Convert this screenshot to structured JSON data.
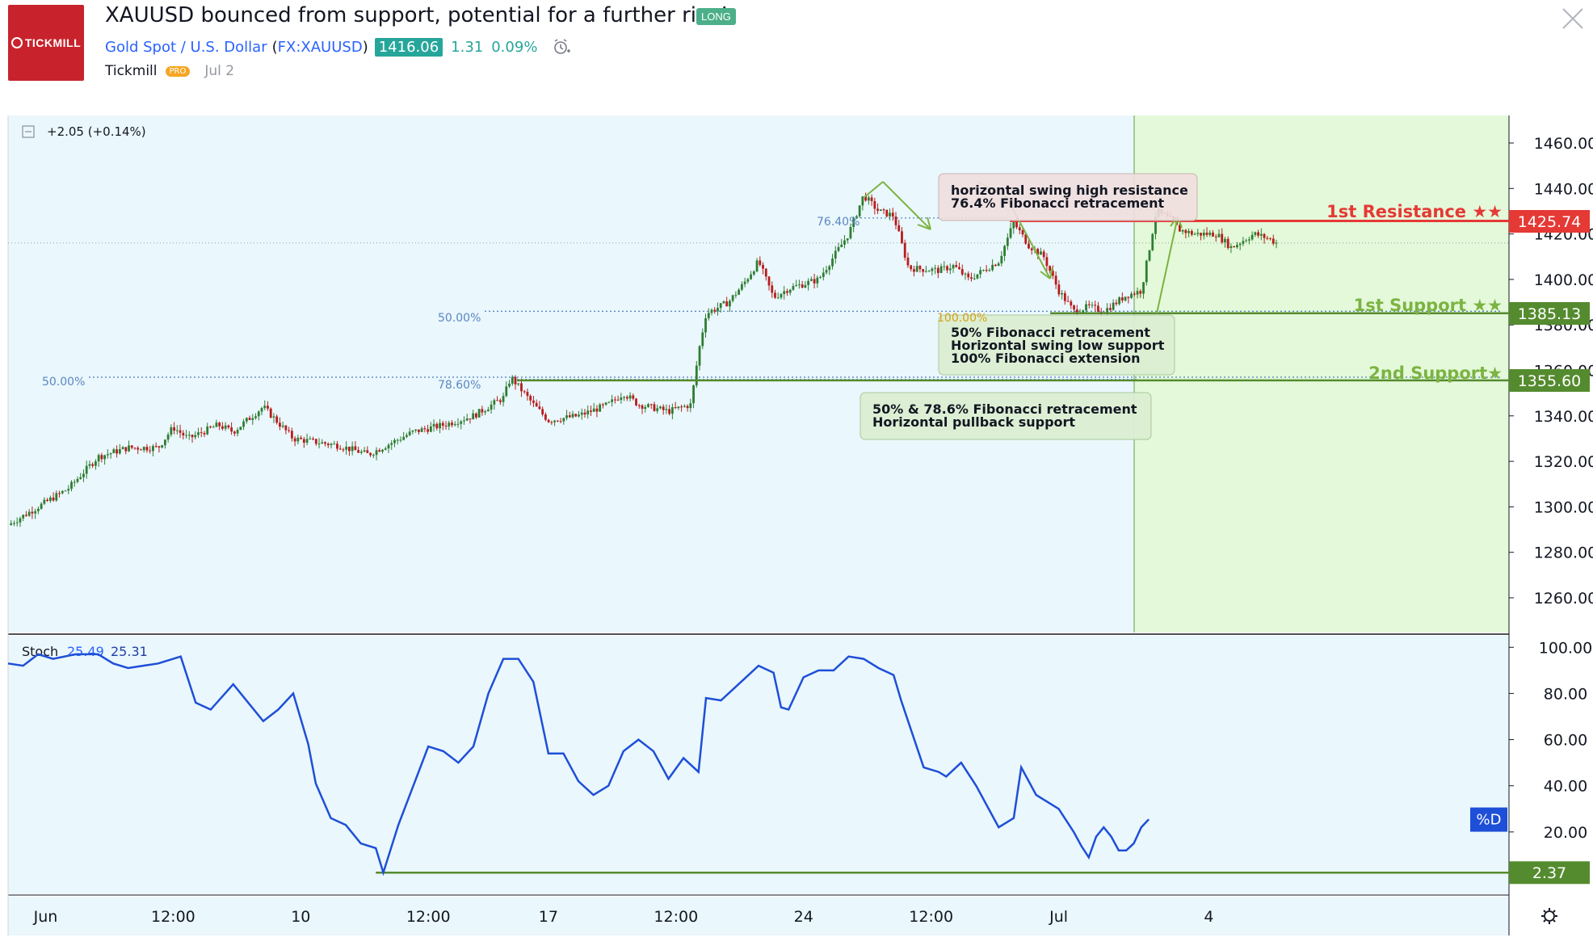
{
  "header": {
    "logo_text": "TICKMILL",
    "title": "XAUUSD bounced from support, potential for a further rise!",
    "badge": "LONG",
    "symbol_name": "Gold Spot / U.S. Dollar",
    "symbol_code": "FX:XAUUSD",
    "price": "1416.06",
    "change": "1.31",
    "change_pct": "0.09%",
    "author": "Tickmill",
    "author_badge": "PRO",
    "date": "Jul 2",
    "icons": [
      "alarm-clock-icon",
      "close-icon"
    ]
  },
  "colors": {
    "chart_bg": "#eaf7fc",
    "highlight_bg": "#e3f9d9",
    "resistance": "#e53935",
    "support": "#558b2f",
    "stoch_line": "#1e4fd8",
    "candle_up": "#2e7d32",
    "candle_down": "#b71c1c",
    "link": "#2962ff"
  },
  "main_pane": {
    "change_label": "+2.05 (+0.14%)",
    "y_ticks": [
      "1460.00",
      "1440.00",
      "1420.00",
      "1400.00",
      "1380.00",
      "1360.00",
      "1340.00",
      "1320.00",
      "1300.00",
      "1280.00",
      "1260.00"
    ],
    "levels": [
      {
        "name": "1st Resistance ★★",
        "value": "1425.74"
      },
      {
        "name": "1st Support ★★",
        "value": "1385.13"
      },
      {
        "name": "2nd Support★",
        "value": "1355.60"
      }
    ],
    "fib_labels": [
      "76.40%",
      "50.00%",
      "100.00%",
      "50.00%",
      "78.60%"
    ],
    "annotations": [
      {
        "line1": "horizontal swing high resistance",
        "line2": "76.4% Fibonacci retracement"
      },
      {
        "line1": "50% Fibonacci retracement",
        "line2": "Horizontal swing low support",
        "line3": "100% Fibonacci extension"
      },
      {
        "line1": "50% & 78.6% Fibonacci retracement",
        "line2": "Horizontal pullback support"
      }
    ]
  },
  "stoch_pane": {
    "label": "Stoch",
    "k_value": "25.49",
    "d_value": "25.31",
    "y_ticks": [
      "100.00",
      "80.00",
      "60.00",
      "40.00",
      "20.00"
    ],
    "d_badge": "%D",
    "level_badge": "2.37"
  },
  "x_axis": {
    "labels": [
      "Jun",
      "12:00",
      "10",
      "12:00",
      "17",
      "12:00",
      "24",
      "12:00",
      "Jul",
      "4"
    ]
  },
  "chart_data": {
    "type": "candlestick",
    "title": "XAUUSD bounced from support, potential for a further rise!",
    "instrument": "Gold Spot / U.S. Dollar",
    "x_labels": [
      "Jun",
      "12:00",
      "10",
      "12:00",
      "17",
      "12:00",
      "24",
      "12:00",
      "Jul",
      "4"
    ],
    "ylim": [
      1250,
      1470
    ],
    "y_ticks": [
      1260,
      1280,
      1300,
      1320,
      1340,
      1360,
      1380,
      1400,
      1420,
      1440,
      1460
    ],
    "close_path": [
      {
        "x": 0,
        "y": 1292
      },
      {
        "x": 0.04,
        "y": 1308
      },
      {
        "x": 0.06,
        "y": 1322
      },
      {
        "x": 0.08,
        "y": 1326
      },
      {
        "x": 0.1,
        "y": 1326
      },
      {
        "x": 0.11,
        "y": 1335
      },
      {
        "x": 0.12,
        "y": 1330
      },
      {
        "x": 0.14,
        "y": 1336
      },
      {
        "x": 0.15,
        "y": 1333
      },
      {
        "x": 0.17,
        "y": 1344
      },
      {
        "x": 0.19,
        "y": 1330
      },
      {
        "x": 0.2,
        "y": 1329
      },
      {
        "x": 0.22,
        "y": 1327
      },
      {
        "x": 0.24,
        "y": 1323
      },
      {
        "x": 0.27,
        "y": 1333
      },
      {
        "x": 0.29,
        "y": 1336
      },
      {
        "x": 0.31,
        "y": 1340
      },
      {
        "x": 0.33,
        "y": 1348
      },
      {
        "x": 0.335,
        "y": 1357
      },
      {
        "x": 0.35,
        "y": 1345
      },
      {
        "x": 0.36,
        "y": 1338
      },
      {
        "x": 0.38,
        "y": 1340
      },
      {
        "x": 0.4,
        "y": 1345
      },
      {
        "x": 0.41,
        "y": 1350
      },
      {
        "x": 0.42,
        "y": 1345
      },
      {
        "x": 0.44,
        "y": 1342
      },
      {
        "x": 0.455,
        "y": 1345
      },
      {
        "x": 0.46,
        "y": 1368
      },
      {
        "x": 0.465,
        "y": 1385
      },
      {
        "x": 0.48,
        "y": 1390
      },
      {
        "x": 0.49,
        "y": 1398
      },
      {
        "x": 0.5,
        "y": 1408
      },
      {
        "x": 0.51,
        "y": 1392
      },
      {
        "x": 0.52,
        "y": 1396
      },
      {
        "x": 0.54,
        "y": 1400
      },
      {
        "x": 0.55,
        "y": 1410
      },
      {
        "x": 0.56,
        "y": 1420
      },
      {
        "x": 0.57,
        "y": 1437
      },
      {
        "x": 0.58,
        "y": 1430
      },
      {
        "x": 0.59,
        "y": 1428
      },
      {
        "x": 0.6,
        "y": 1405
      },
      {
        "x": 0.62,
        "y": 1404
      },
      {
        "x": 0.63,
        "y": 1406
      },
      {
        "x": 0.64,
        "y": 1400
      },
      {
        "x": 0.66,
        "y": 1408
      },
      {
        "x": 0.67,
        "y": 1425
      },
      {
        "x": 0.68,
        "y": 1415
      },
      {
        "x": 0.69,
        "y": 1410
      },
      {
        "x": 0.7,
        "y": 1395
      },
      {
        "x": 0.71,
        "y": 1386
      },
      {
        "x": 0.72,
        "y": 1388
      },
      {
        "x": 0.73,
        "y": 1386
      },
      {
        "x": 0.745,
        "y": 1393
      },
      {
        "x": 0.755,
        "y": 1395
      },
      {
        "x": 0.76,
        "y": 1412
      },
      {
        "x": 0.765,
        "y": 1430
      },
      {
        "x": 0.775,
        "y": 1426
      },
      {
        "x": 0.78,
        "y": 1422
      },
      {
        "x": 0.79,
        "y": 1420
      },
      {
        "x": 0.805,
        "y": 1420
      },
      {
        "x": 0.815,
        "y": 1414
      },
      {
        "x": 0.83,
        "y": 1420
      },
      {
        "x": 0.84,
        "y": 1418
      },
      {
        "x": 0.845,
        "y": 1416
      }
    ],
    "horizontal_levels": [
      {
        "name": "1st Resistance ★★",
        "value": 1425.74
      },
      {
        "name": "1st Support ★★",
        "value": 1385.13
      },
      {
        "name": "2nd Support★",
        "value": 1355.6
      }
    ],
    "stochastic": {
      "k": 25.49,
      "d": 25.31,
      "ylim": [
        0,
        105
      ],
      "y_ticks": [
        20,
        40,
        60,
        80,
        100
      ],
      "level": 2.37,
      "line": [
        {
          "x": 0,
          "y": 93
        },
        {
          "x": 0.01,
          "y": 92
        },
        {
          "x": 0.02,
          "y": 97
        },
        {
          "x": 0.03,
          "y": 95
        },
        {
          "x": 0.045,
          "y": 97
        },
        {
          "x": 0.06,
          "y": 97
        },
        {
          "x": 0.07,
          "y": 93
        },
        {
          "x": 0.08,
          "y": 91
        },
        {
          "x": 0.09,
          "y": 92
        },
        {
          "x": 0.1,
          "y": 93
        },
        {
          "x": 0.115,
          "y": 96
        },
        {
          "x": 0.125,
          "y": 76
        },
        {
          "x": 0.135,
          "y": 73
        },
        {
          "x": 0.15,
          "y": 84
        },
        {
          "x": 0.155,
          "y": 80
        },
        {
          "x": 0.17,
          "y": 68
        },
        {
          "x": 0.18,
          "y": 73
        },
        {
          "x": 0.19,
          "y": 80
        },
        {
          "x": 0.2,
          "y": 58
        },
        {
          "x": 0.205,
          "y": 41
        },
        {
          "x": 0.215,
          "y": 26
        },
        {
          "x": 0.225,
          "y": 23
        },
        {
          "x": 0.235,
          "y": 15
        },
        {
          "x": 0.245,
          "y": 13
        },
        {
          "x": 0.25,
          "y": 2.37
        },
        {
          "x": 0.26,
          "y": 23
        },
        {
          "x": 0.28,
          "y": 57
        },
        {
          "x": 0.29,
          "y": 55
        },
        {
          "x": 0.3,
          "y": 50
        },
        {
          "x": 0.31,
          "y": 57
        },
        {
          "x": 0.32,
          "y": 80
        },
        {
          "x": 0.33,
          "y": 95
        },
        {
          "x": 0.34,
          "y": 95
        },
        {
          "x": 0.35,
          "y": 85
        },
        {
          "x": 0.36,
          "y": 54
        },
        {
          "x": 0.37,
          "y": 54
        },
        {
          "x": 0.38,
          "y": 42
        },
        {
          "x": 0.39,
          "y": 36
        },
        {
          "x": 0.4,
          "y": 40
        },
        {
          "x": 0.41,
          "y": 55
        },
        {
          "x": 0.42,
          "y": 60
        },
        {
          "x": 0.43,
          "y": 55
        },
        {
          "x": 0.44,
          "y": 43
        },
        {
          "x": 0.45,
          "y": 52
        },
        {
          "x": 0.46,
          "y": 46
        },
        {
          "x": 0.465,
          "y": 78
        },
        {
          "x": 0.475,
          "y": 77
        },
        {
          "x": 0.49,
          "y": 86
        },
        {
          "x": 0.5,
          "y": 92
        },
        {
          "x": 0.51,
          "y": 89
        },
        {
          "x": 0.515,
          "y": 74
        },
        {
          "x": 0.52,
          "y": 73
        },
        {
          "x": 0.53,
          "y": 87
        },
        {
          "x": 0.54,
          "y": 90
        },
        {
          "x": 0.55,
          "y": 90
        },
        {
          "x": 0.56,
          "y": 96
        },
        {
          "x": 0.57,
          "y": 95
        },
        {
          "x": 0.58,
          "y": 91
        },
        {
          "x": 0.59,
          "y": 88
        },
        {
          "x": 0.595,
          "y": 77
        },
        {
          "x": 0.61,
          "y": 48
        },
        {
          "x": 0.62,
          "y": 46
        },
        {
          "x": 0.625,
          "y": 44
        },
        {
          "x": 0.635,
          "y": 50
        },
        {
          "x": 0.645,
          "y": 40
        },
        {
          "x": 0.655,
          "y": 28
        },
        {
          "x": 0.66,
          "y": 22
        },
        {
          "x": 0.67,
          "y": 26
        },
        {
          "x": 0.675,
          "y": 48
        },
        {
          "x": 0.685,
          "y": 36
        },
        {
          "x": 0.7,
          "y": 30
        },
        {
          "x": 0.71,
          "y": 20
        },
        {
          "x": 0.715,
          "y": 14
        },
        {
          "x": 0.72,
          "y": 9
        },
        {
          "x": 0.725,
          "y": 18
        },
        {
          "x": 0.73,
          "y": 22
        },
        {
          "x": 0.735,
          "y": 18
        },
        {
          "x": 0.74,
          "y": 12
        },
        {
          "x": 0.745,
          "y": 12
        },
        {
          "x": 0.75,
          "y": 15
        },
        {
          "x": 0.755,
          "y": 22
        },
        {
          "x": 0.76,
          "y": 25.49
        }
      ]
    }
  }
}
